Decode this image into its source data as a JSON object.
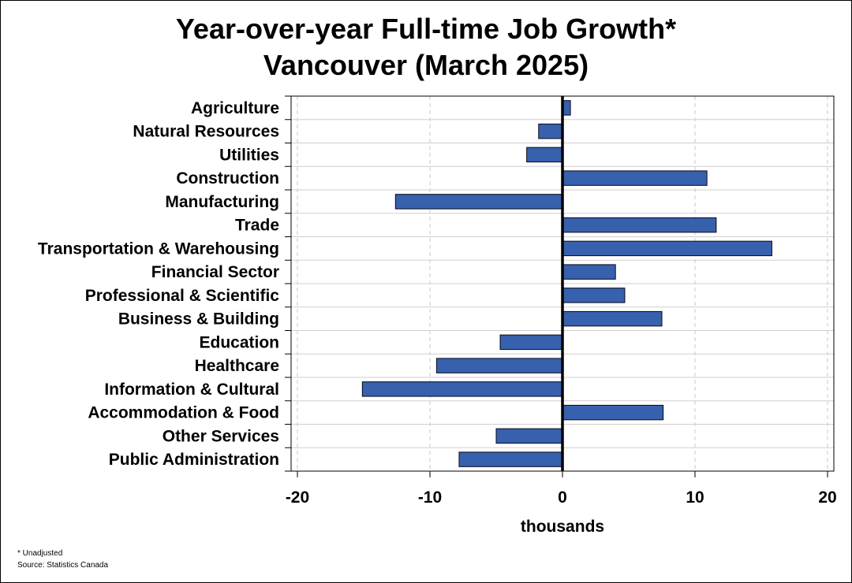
{
  "chart_data": {
    "type": "bar",
    "orientation": "horizontal",
    "title": "Year-over-year Full-time Job Growth*",
    "subtitle": "Vancouver (March 2025)",
    "xlabel": "thousands",
    "ylabel": "",
    "xlim": [
      -20,
      20
    ],
    "xticks": [
      "-20",
      "-10",
      "0",
      "10",
      "20"
    ],
    "xtick_values": [
      -20,
      -10,
      0,
      10,
      20
    ],
    "grid": "vertical dashed",
    "categories": [
      "Agriculture",
      "Natural Resources",
      "Utilities",
      "Construction",
      "Manufacturing",
      "Trade",
      "Transportation & Warehousing",
      "Financial Sector",
      "Professional & Scientific",
      "Business & Building",
      "Education",
      "Healthcare",
      "Information & Cultural",
      "Accommodation & Food",
      "Other Services",
      "Public Administration"
    ],
    "values": [
      0.6,
      -1.8,
      -2.7,
      10.9,
      -12.6,
      11.6,
      15.8,
      4.0,
      4.7,
      7.5,
      -4.7,
      -9.5,
      -15.1,
      7.6,
      -5.0,
      -7.8
    ],
    "bar_color": "#3760ad",
    "bar_edge_color": "#0a0a1a"
  },
  "footnotes": {
    "note": "* Unadjusted",
    "source": "Source: Statistics Canada"
  }
}
